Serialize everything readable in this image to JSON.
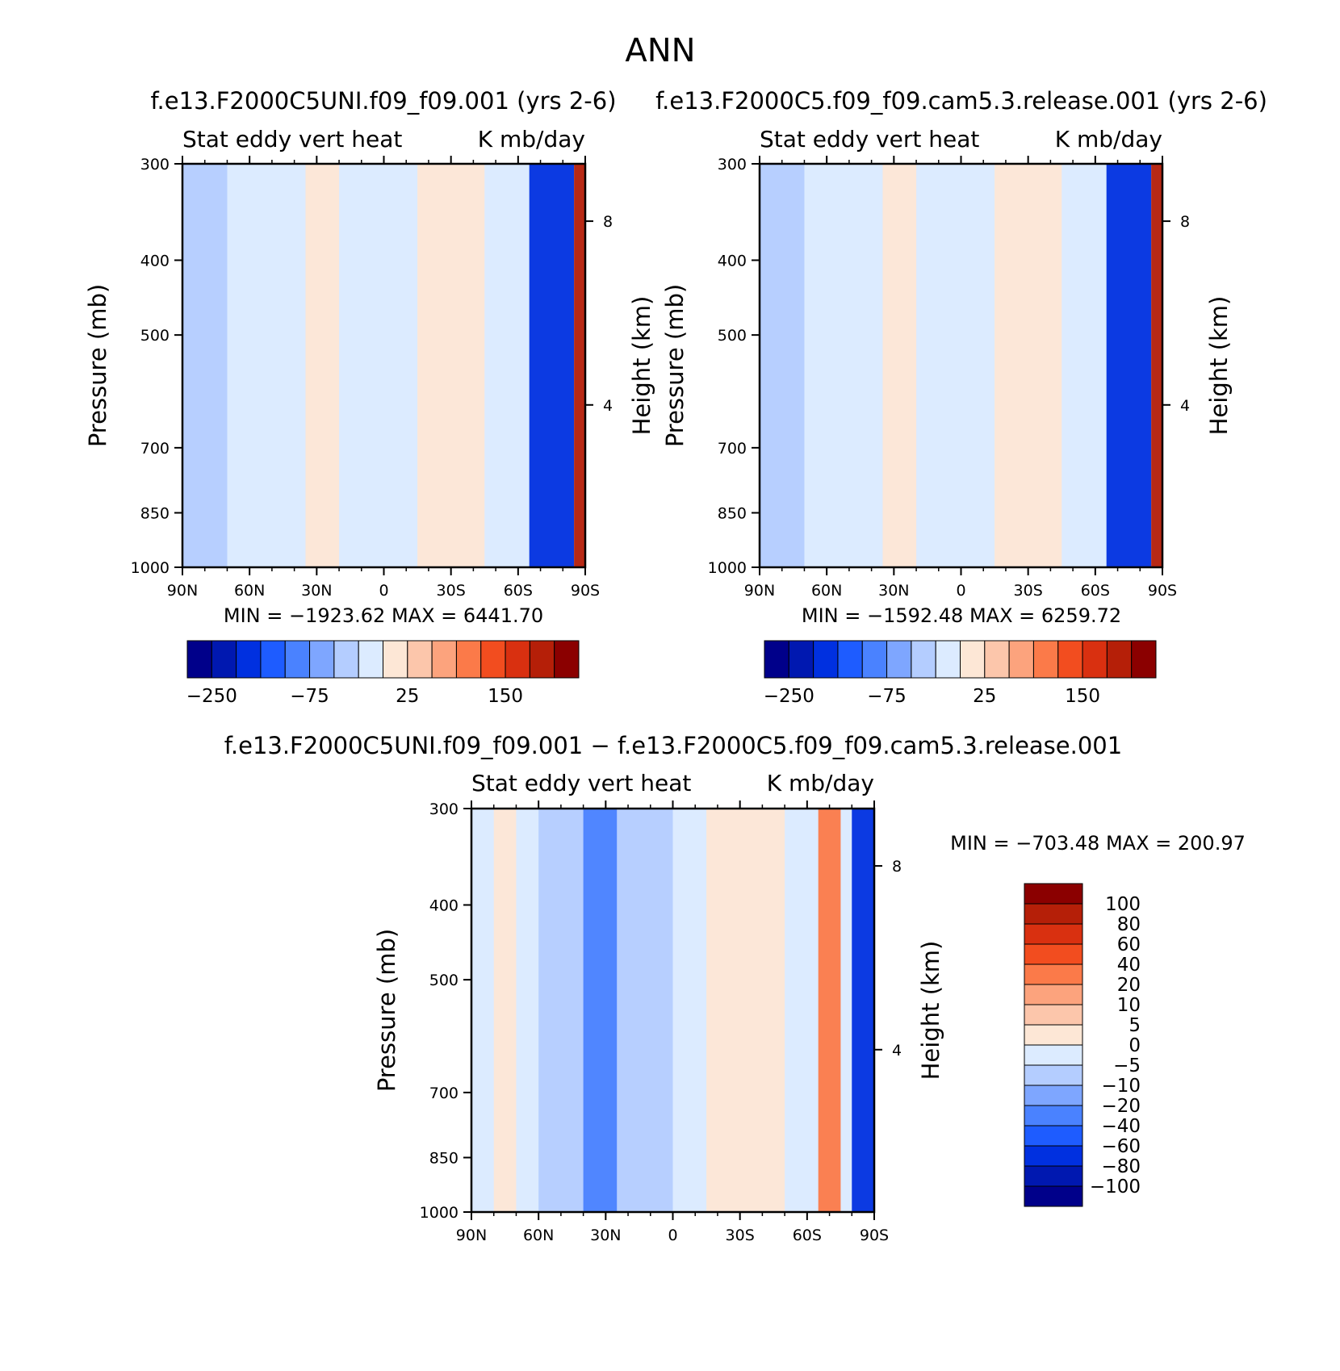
{
  "figure": {
    "title": "ANN"
  },
  "chart_data": [
    {
      "type": "heatmap",
      "title": "f.e13.F2000C5UNI.f09_f09.001 (yrs 2-6)",
      "subtitle_left": "Stat eddy vert heat",
      "subtitle_right": "K mb/day",
      "xlabel": "",
      "ylabel": "Pressure (mb)",
      "ylabel_right": "Height (km)",
      "x_ticks": [
        "90N",
        "60N",
        "30N",
        "0",
        "30S",
        "60S",
        "90S"
      ],
      "y_ticks": [
        "300",
        "400",
        "500",
        "700",
        "850",
        "1000"
      ],
      "y_right_ticks": [
        "8",
        "4"
      ],
      "ylim": [
        1000,
        300
      ],
      "y_scale": "log",
      "min_text": "MIN = −1923.62",
      "max_text": "MAX = 6441.70",
      "colorbar": {
        "orientation": "horizontal",
        "labels": [
          "−250",
          "−75",
          "25",
          "150"
        ],
        "colors": [
          "#00008a",
          "#0018b0",
          "#0030e0",
          "#1e5cff",
          "#4a82ff",
          "#7ea6ff",
          "#b4cdff",
          "#dcebff",
          "#fde7d6",
          "#fcc6ab",
          "#fca37d",
          "#fb7a49",
          "#f24d1f",
          "#d93010",
          "#b51f08",
          "#8b0000"
        ]
      },
      "features": [
        {
          "lat_from": 90,
          "lat_to": 70,
          "value_class": "negative-weak"
        },
        {
          "lat_from": 35,
          "lat_to": 20,
          "value_class": "positive-weak"
        },
        {
          "lat_from": -15,
          "lat_to": -45,
          "value_class": "positive-weak"
        },
        {
          "lat_from": -65,
          "lat_to": -85,
          "value_class": "negative-strong"
        },
        {
          "lat_from": -85,
          "lat_to": -90,
          "value_class": "positive-strong"
        }
      ]
    },
    {
      "type": "heatmap",
      "title": "f.e13.F2000C5.f09_f09.cam5.3.release.001 (yrs 2-6)",
      "subtitle_left": "Stat eddy vert heat",
      "subtitle_right": "K mb/day",
      "xlabel": "",
      "ylabel": "Pressure (mb)",
      "ylabel_right": "Height (km)",
      "x_ticks": [
        "90N",
        "60N",
        "30N",
        "0",
        "30S",
        "60S",
        "90S"
      ],
      "y_ticks": [
        "300",
        "400",
        "500",
        "700",
        "850",
        "1000"
      ],
      "y_right_ticks": [
        "8",
        "4"
      ],
      "ylim": [
        1000,
        300
      ],
      "y_scale": "log",
      "min_text": "MIN = −1592.48",
      "max_text": "MAX = 6259.72",
      "colorbar": {
        "orientation": "horizontal",
        "labels": [
          "−250",
          "−75",
          "25",
          "150"
        ],
        "colors": [
          "#00008a",
          "#0018b0",
          "#0030e0",
          "#1e5cff",
          "#4a82ff",
          "#7ea6ff",
          "#b4cdff",
          "#dcebff",
          "#fde7d6",
          "#fcc6ab",
          "#fca37d",
          "#fb7a49",
          "#f24d1f",
          "#d93010",
          "#b51f08",
          "#8b0000"
        ]
      },
      "features": [
        {
          "lat_from": 90,
          "lat_to": 70,
          "value_class": "negative-weak"
        },
        {
          "lat_from": 35,
          "lat_to": 20,
          "value_class": "positive-weak"
        },
        {
          "lat_from": -15,
          "lat_to": -45,
          "value_class": "positive-weak"
        },
        {
          "lat_from": -65,
          "lat_to": -85,
          "value_class": "negative-strong"
        },
        {
          "lat_from": -85,
          "lat_to": -90,
          "value_class": "positive-strong"
        }
      ]
    },
    {
      "type": "heatmap",
      "title": "f.e13.F2000C5UNI.f09_f09.001 − f.e13.F2000C5.f09_f09.cam5.3.release.001",
      "subtitle_left": "Stat eddy vert heat",
      "subtitle_right": "K mb/day",
      "xlabel": "",
      "ylabel": "Pressure (mb)",
      "ylabel_right": "Height (km)",
      "x_ticks": [
        "90N",
        "60N",
        "30N",
        "0",
        "30S",
        "60S",
        "90S"
      ],
      "y_ticks": [
        "300",
        "400",
        "500",
        "700",
        "850",
        "1000"
      ],
      "y_right_ticks": [
        "8",
        "4"
      ],
      "ylim": [
        1000,
        300
      ],
      "y_scale": "log",
      "min_text": "MIN = −703.48",
      "max_text": "MAX = 200.97",
      "colorbar": {
        "orientation": "vertical",
        "labels": [
          "100",
          "80",
          "60",
          "40",
          "20",
          "10",
          "5",
          "0",
          "−5",
          "−10",
          "−20",
          "−40",
          "−60",
          "−80",
          "−100"
        ],
        "colors": [
          "#8b0000",
          "#b51f08",
          "#d93010",
          "#f24d1f",
          "#fb7a49",
          "#fca37d",
          "#fcc6ab",
          "#fde7d6",
          "#dcebff",
          "#b4cdff",
          "#7ea6ff",
          "#4a82ff",
          "#1e5cff",
          "#0030e0",
          "#0018b0",
          "#00008a"
        ]
      },
      "features": [
        {
          "lat_from": 80,
          "lat_to": 70,
          "value_class": "positive-weak"
        },
        {
          "lat_from": 60,
          "lat_to": 0,
          "value_class": "negative-weak"
        },
        {
          "lat_from": 40,
          "lat_to": 25,
          "value_class": "negative-moderate"
        },
        {
          "lat_from": -15,
          "lat_to": -50,
          "value_class": "positive-weak"
        },
        {
          "lat_from": -65,
          "lat_to": -75,
          "value_class": "positive-moderate"
        },
        {
          "lat_from": -80,
          "lat_to": -90,
          "value_class": "negative-strong"
        }
      ]
    }
  ]
}
